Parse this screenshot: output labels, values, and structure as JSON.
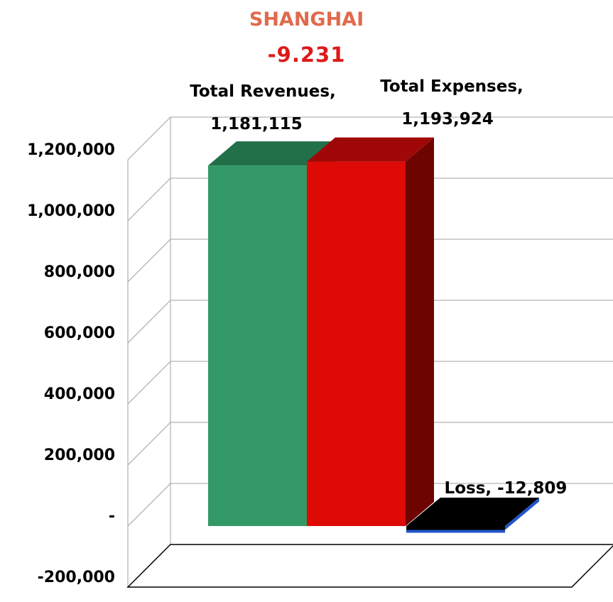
{
  "title": "SHANGHAI",
  "subtitle": "-9.231",
  "chart_data": {
    "type": "bar",
    "title": "SHANGHAI",
    "subtitle": "-9.231",
    "categories": [
      "Total Revenues",
      "Total Expenses",
      "Loss"
    ],
    "values": [
      1181115,
      1193924,
      -12809
    ],
    "value_labels": [
      "1,181,115",
      "1,193,924",
      "-12,809"
    ],
    "colors": [
      "#339966",
      "#dd0a05",
      "#000000"
    ],
    "side_colors": [
      "#1f6b45",
      "#6e0400",
      "#2255cc"
    ],
    "top_colors": [
      "#227049",
      "#a00808",
      "#000000"
    ],
    "ylim": [
      -200000,
      1200000
    ],
    "yticks": [
      -200000,
      0,
      200000,
      400000,
      600000,
      800000,
      1000000,
      1200000
    ],
    "ytick_labels": [
      "-200,000",
      "-",
      "200,000",
      "400,000",
      "600,000",
      "800,000",
      "1,000,000",
      "1,200,000"
    ],
    "grid": true,
    "legend": "none",
    "xlabel": "",
    "ylabel": ""
  }
}
